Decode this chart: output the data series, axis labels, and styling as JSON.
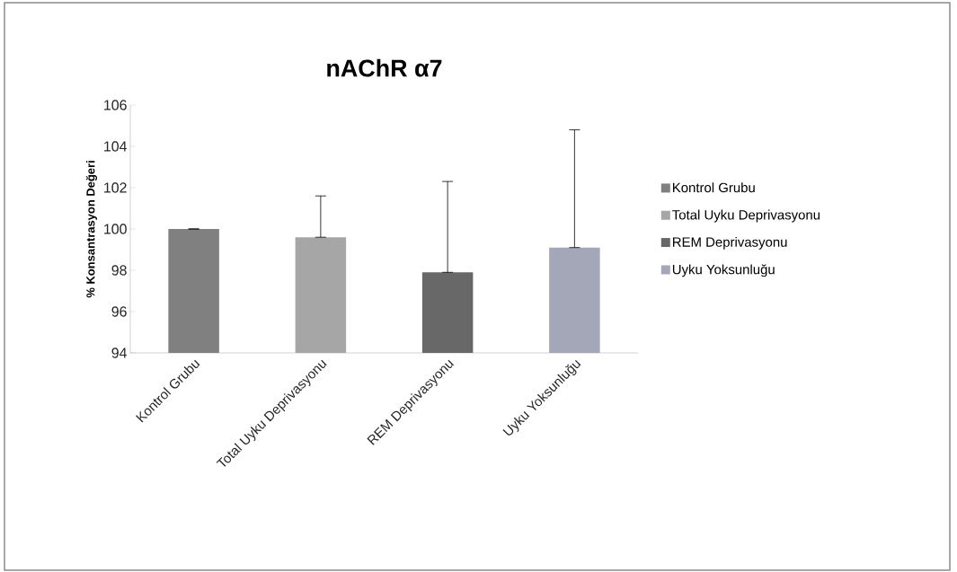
{
  "chart_data": {
    "type": "bar",
    "title": "nAChR α7",
    "ylabel": "% Konsantrasyon  Değeri",
    "categories": [
      "Kontrol Grubu",
      "Total Uyku Deprivasyonu",
      "REM Deprivasyonu",
      "Uyku Yoksunluğu"
    ],
    "series": [
      {
        "name": "Kontrol Grubu",
        "color": "#808080",
        "values": [
          100,
          null,
          null,
          null
        ],
        "errors": [
          [
            100,
            100
          ],
          null,
          null,
          null
        ]
      },
      {
        "name": "Total Uyku Deprivasyonu",
        "color": "#a6a6a6",
        "values": [
          null,
          99.6,
          null,
          null
        ],
        "errors": [
          null,
          [
            99.6,
            101.6
          ],
          null,
          null
        ]
      },
      {
        "name": "REM Deprivasyonu",
        "color": "#686868",
        "values": [
          null,
          null,
          97.9,
          null
        ],
        "errors": [
          null,
          null,
          [
            97.9,
            102.3
          ],
          null
        ]
      },
      {
        "name": "Uyku Yoksunluğu",
        "color": "#a3a7b8",
        "values": [
          null,
          null,
          null,
          99.1
        ],
        "errors": [
          null,
          null,
          null,
          [
            99.1,
            104.8
          ]
        ]
      }
    ],
    "ylim": [
      94,
      106
    ],
    "yticks": [
      94,
      96,
      98,
      100,
      102,
      104,
      106
    ],
    "grid": false,
    "legend": "right"
  }
}
